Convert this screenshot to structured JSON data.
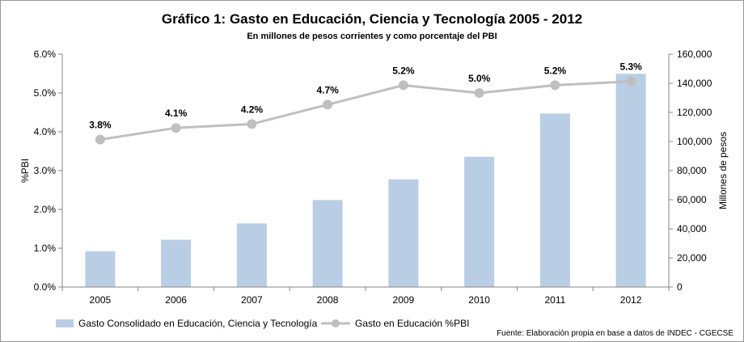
{
  "chart_data": {
    "type": "bar+line",
    "title": "Gráfico 1: Gasto en Educación, Ciencia y Tecnología 2005 - 2012",
    "subtitle": "En millones de pesos corrientes y como porcentaje del PBI",
    "categories": [
      "2005",
      "2006",
      "2007",
      "2008",
      "2009",
      "2010",
      "2011",
      "2012"
    ],
    "series": [
      {
        "name": "Gasto Consolidado en Educación, Ciencia y Tecnología",
        "type": "bar",
        "axis": "right",
        "values": [
          24500,
          32500,
          43700,
          59800,
          74000,
          89500,
          119200,
          146500
        ]
      },
      {
        "name": "Gasto en Educación %PBI",
        "type": "line",
        "axis": "left",
        "values": [
          3.8,
          4.1,
          4.2,
          4.7,
          5.2,
          5.0,
          5.2,
          5.3
        ],
        "data_labels": [
          "3.8%",
          "4.1%",
          "4.2%",
          "4.7%",
          "5.2%",
          "5.0%",
          "5.2%",
          "5.3%"
        ]
      }
    ],
    "left_axis": {
      "label": "%PBI",
      "range": [
        0,
        6
      ],
      "ticks": [
        "0.0%",
        "1.0%",
        "2.0%",
        "3.0%",
        "4.0%",
        "5.0%",
        "6.0%"
      ]
    },
    "right_axis": {
      "label": "Millones de pesos",
      "range": [
        0,
        160000
      ],
      "ticks": [
        "0",
        "20,000",
        "40,000",
        "60,000",
        "80,000",
        "100,000",
        "120,000",
        "140,000",
        "160,000"
      ]
    },
    "grid": false,
    "legend_position": "bottom-left",
    "source_note": "Fuente: Elaboración propia en base a datos de INDEC - CGECSE",
    "colors": {
      "bar": "#b9cde5",
      "line": "#bfbfbf",
      "marker": "#bfbfbf"
    }
  }
}
